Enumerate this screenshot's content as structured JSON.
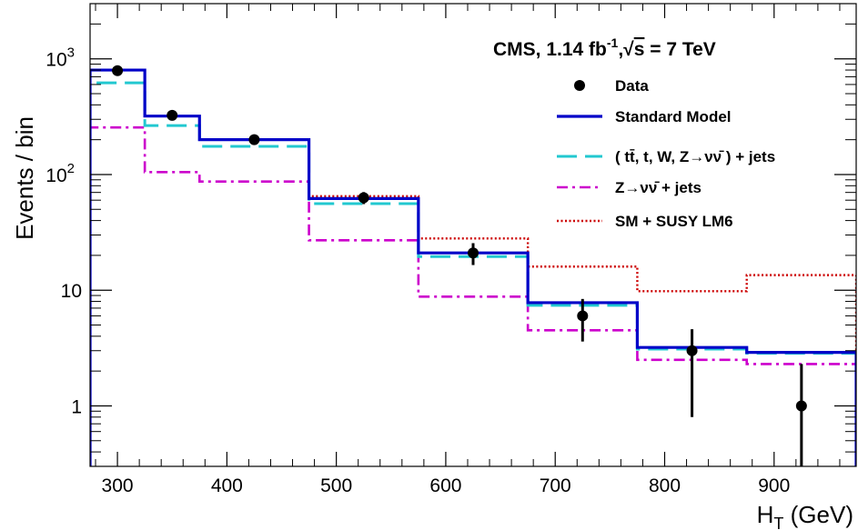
{
  "chart_data": {
    "type": "line",
    "title_parts": {
      "prefix": "CMS, 1.14 fb",
      "sup": "-1",
      "comma": ",",
      "sqrt": "√",
      "s": "s",
      "suffix": " = 7 TeV"
    },
    "xlabel": {
      "main": "H",
      "sub": "T",
      "unit": " (GeV)"
    },
    "ylabel": "Events / bin",
    "xlim": [
      275,
      975
    ],
    "ylim": [
      0.3,
      3000
    ],
    "yscale": "log",
    "x_ticks": [
      300,
      400,
      500,
      600,
      700,
      800,
      900
    ],
    "y_ticks": [
      {
        "value": 1,
        "label": "1"
      },
      {
        "value": 10,
        "label": "10"
      },
      {
        "value": 100,
        "label": "10",
        "sup": "2"
      },
      {
        "value": 1000,
        "label": "10",
        "sup": "3"
      }
    ],
    "bin_edges": [
      275,
      325,
      375,
      475,
      575,
      675,
      775,
      875,
      975
    ],
    "series": [
      {
        "name": "Standard Model",
        "color": "#0000c8",
        "style": "solid",
        "values": [
          800,
          320,
          200,
          62,
          21,
          7.8,
          3.2,
          2.9
        ]
      },
      {
        "name": "( tt̄, t, W, Z→νν̄ ) + jets",
        "color": "#22c8d0",
        "style": "dashed",
        "values": [
          620,
          265,
          175,
          56,
          19.5,
          7.4,
          3.1,
          2.85
        ]
      },
      {
        "name": "Z→νν̄ + jets",
        "color": "#cc00cc",
        "style": "dashdot",
        "values": [
          255,
          105,
          87,
          27,
          8.8,
          4.5,
          2.5,
          2.3
        ]
      },
      {
        "name": "SM + SUSY LM6",
        "color": "#cc0000",
        "style": "dotted",
        "values": [
          800,
          320,
          200,
          65,
          28,
          16,
          9.8,
          13.5
        ]
      }
    ],
    "data_points": {
      "name": "Data",
      "x": [
        300,
        350,
        425,
        525,
        625,
        725,
        825,
        925
      ],
      "y": [
        790,
        325,
        200,
        63,
        21,
        6,
        3,
        1
      ],
      "err_low": [
        28,
        18,
        14,
        7.5,
        4.5,
        2.4,
        2.2,
        0.85
      ],
      "err_high": [
        28,
        18,
        14,
        7.5,
        4.5,
        2.4,
        1.6,
        1.3
      ]
    },
    "legend": [
      {
        "label": "Data",
        "kind": "marker"
      },
      {
        "label": "Standard Model",
        "kind": "solid",
        "color": "#0000c8"
      },
      {
        "label": "( tt̄, t, W, Z→νν̄ ) + jets",
        "kind": "dashed",
        "color": "#22c8d0"
      },
      {
        "label": "Z→νν̄ + jets",
        "kind": "dashdot",
        "color": "#cc00cc"
      },
      {
        "label": "SM + SUSY LM6",
        "kind": "dotted",
        "color": "#cc0000"
      }
    ]
  }
}
